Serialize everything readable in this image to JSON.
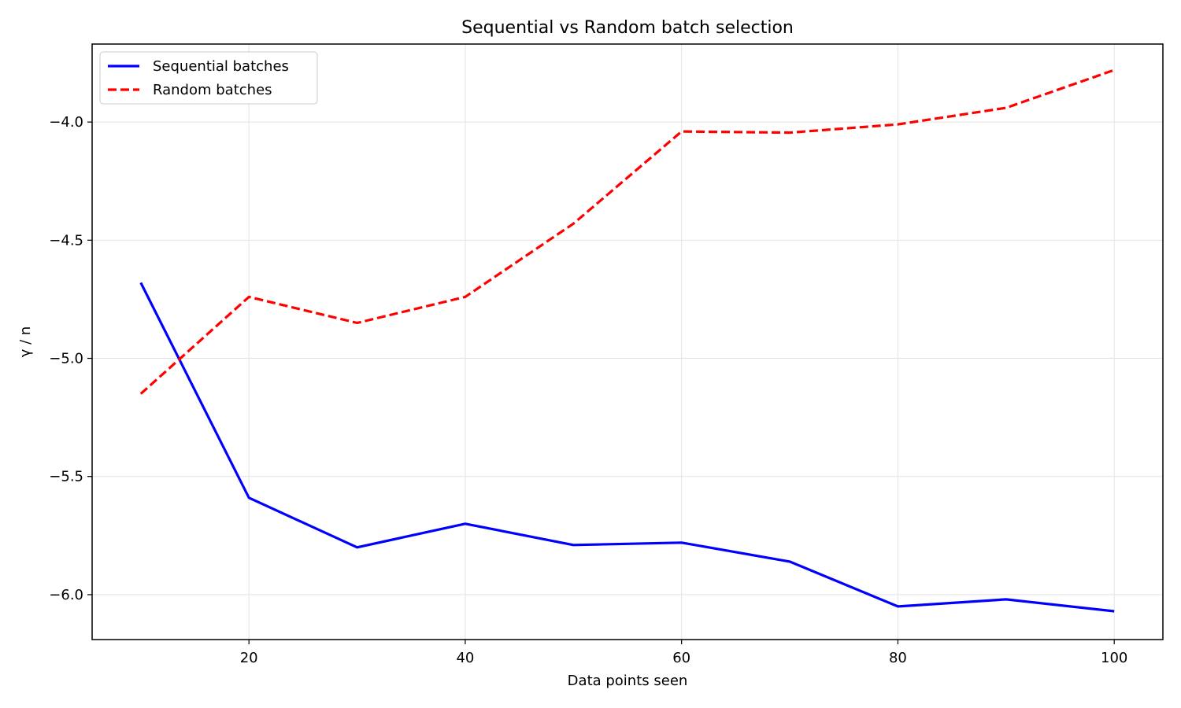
{
  "chart_data": {
    "type": "line",
    "title": "Sequential vs Random batch selection",
    "xlabel": "Data points seen",
    "ylabel": "γ / n",
    "x": [
      10,
      20,
      30,
      40,
      50,
      60,
      70,
      80,
      90,
      100
    ],
    "xlim": [
      5.5,
      104.5
    ],
    "ylim": [
      -6.19,
      -3.67
    ],
    "xticks": [
      20,
      40,
      60,
      80,
      100
    ],
    "xtick_labels": [
      "20",
      "40",
      "60",
      "80",
      "100"
    ],
    "yticks": [
      -6.0,
      -5.5,
      -5.0,
      -4.5,
      -4.0
    ],
    "ytick_labels": [
      "−6.0",
      "−5.5",
      "−5.0",
      "−4.5",
      "−4.0"
    ],
    "grid": true,
    "legend_position": "top-left",
    "series": [
      {
        "name": "Sequential batches",
        "color": "#0000ff",
        "style": "solid",
        "values": [
          -4.68,
          -5.59,
          -5.8,
          -5.7,
          -5.79,
          -5.78,
          -5.86,
          -6.05,
          -6.02,
          -6.07
        ]
      },
      {
        "name": "Random batches",
        "color": "#ff0000",
        "style": "dashed",
        "values": [
          -5.15,
          -4.74,
          -4.85,
          -4.74,
          -4.43,
          -4.04,
          -4.045,
          -4.01,
          -3.94,
          -3.78
        ]
      }
    ]
  }
}
